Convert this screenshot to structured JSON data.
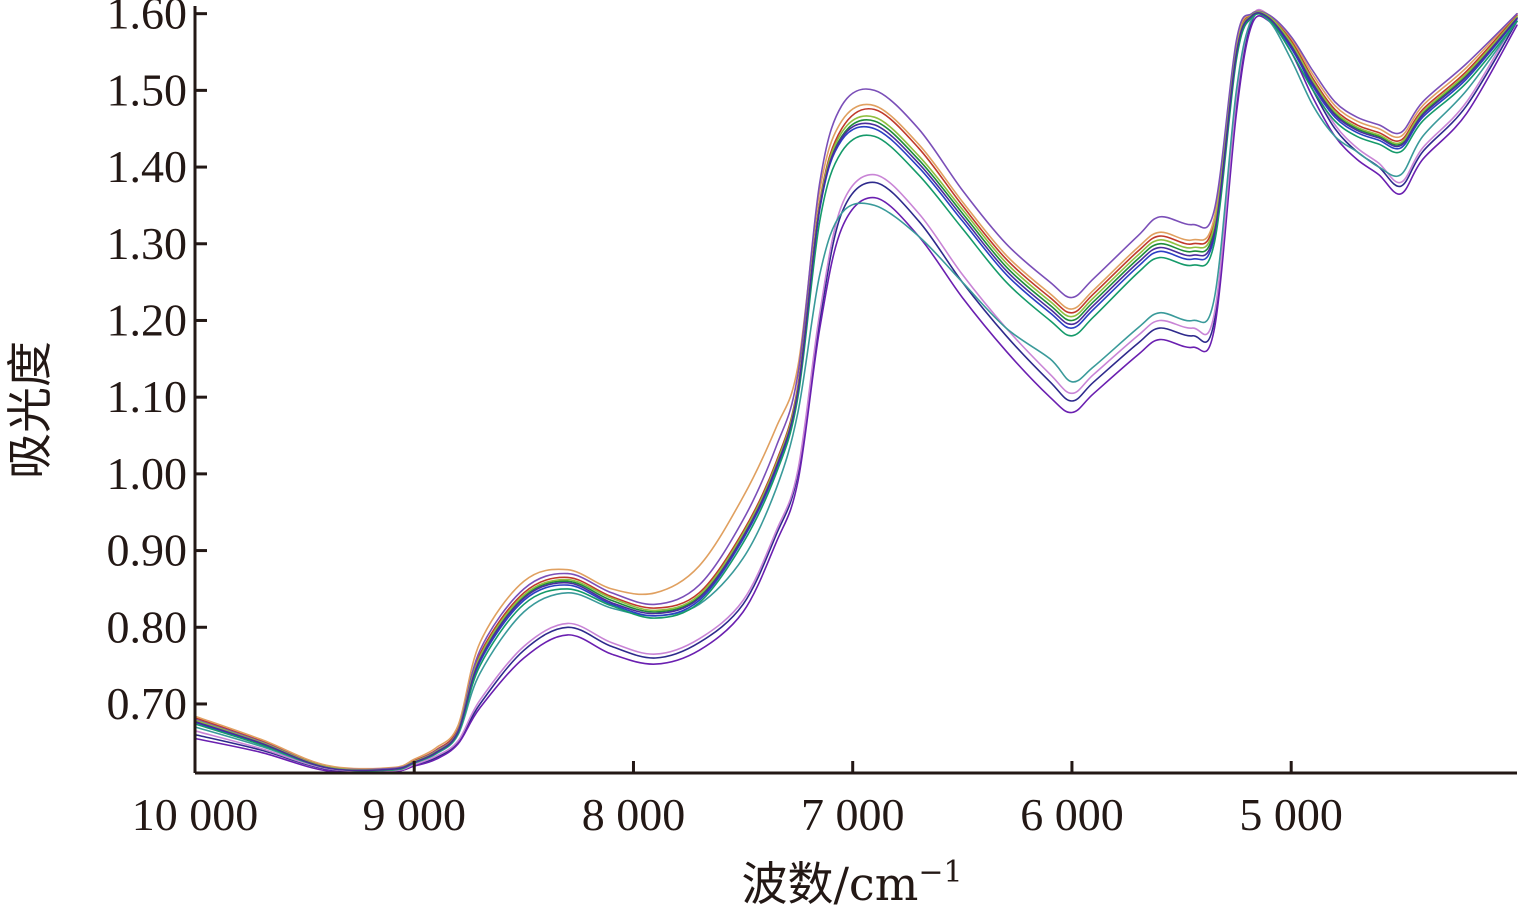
{
  "chart_data": {
    "type": "line",
    "title": "",
    "xlabel": "波数/cm",
    "xlabel_superscript": "−1",
    "ylabel": "吸光度",
    "x_reversed": true,
    "xlim": [
      10000,
      3970
    ],
    "ylim": [
      0.61,
      1.61
    ],
    "x_ticks": [
      10000,
      9000,
      8000,
      7000,
      6000,
      5000
    ],
    "x_tick_labels": [
      "10 000",
      "9 000",
      "8 000",
      "7 000",
      "6 000",
      "5 000"
    ],
    "y_ticks": [
      0.7,
      0.8,
      0.9,
      1.0,
      1.1,
      1.2,
      1.3,
      1.4,
      1.5,
      1.6
    ],
    "y_tick_labels": [
      "0.70",
      "0.80",
      "0.90",
      "1.00",
      "1.10",
      "1.20",
      "1.30",
      "1.40",
      "1.50",
      "1.60"
    ],
    "grid": false,
    "legend": "none",
    "x": [
      10000,
      9700,
      9400,
      9100,
      9000,
      8900,
      8800,
      8700,
      8500,
      8300,
      8100,
      7900,
      7700,
      7500,
      7350,
      7250,
      7150,
      7050,
      6900,
      6700,
      6500,
      6300,
      6100,
      6000,
      5900,
      5700,
      5600,
      5450,
      5350,
      5250,
      5180,
      5100,
      5000,
      4900,
      4800,
      4700,
      4600,
      4500,
      4400,
      4200,
      3970
    ],
    "series": [
      {
        "color": "#2e2a8c",
        "values": [
          0.66,
          0.64,
          0.615,
          0.612,
          0.62,
          0.63,
          0.65,
          0.7,
          0.77,
          0.8,
          0.775,
          0.76,
          0.78,
          0.83,
          0.92,
          1.0,
          1.2,
          1.34,
          1.38,
          1.33,
          1.25,
          1.18,
          1.12,
          1.095,
          1.12,
          1.17,
          1.19,
          1.18,
          1.2,
          1.48,
          1.59,
          1.595,
          1.56,
          1.5,
          1.45,
          1.42,
          1.4,
          1.375,
          1.42,
          1.48,
          1.59
        ]
      },
      {
        "color": "#6a1fb0",
        "values": [
          0.655,
          0.637,
          0.613,
          0.612,
          0.619,
          0.628,
          0.648,
          0.695,
          0.76,
          0.79,
          0.765,
          0.752,
          0.77,
          0.82,
          0.91,
          0.99,
          1.19,
          1.32,
          1.36,
          1.31,
          1.23,
          1.16,
          1.1,
          1.08,
          1.105,
          1.155,
          1.175,
          1.165,
          1.19,
          1.47,
          1.585,
          1.59,
          1.55,
          1.49,
          1.44,
          1.41,
          1.39,
          1.365,
          1.41,
          1.47,
          1.585
        ]
      },
      {
        "color": "#c984d6",
        "values": [
          0.665,
          0.642,
          0.616,
          0.613,
          0.621,
          0.632,
          0.652,
          0.705,
          0.775,
          0.805,
          0.78,
          0.765,
          0.785,
          0.835,
          0.925,
          1.005,
          1.21,
          1.35,
          1.39,
          1.34,
          1.26,
          1.19,
          1.13,
          1.105,
          1.13,
          1.18,
          1.2,
          1.19,
          1.21,
          1.49,
          1.595,
          1.598,
          1.565,
          1.505,
          1.455,
          1.425,
          1.405,
          1.38,
          1.425,
          1.485,
          1.595
        ]
      },
      {
        "color": "#3a9a9a",
        "values": [
          0.67,
          0.645,
          0.617,
          0.614,
          0.623,
          0.635,
          0.66,
          0.74,
          0.82,
          0.845,
          0.825,
          0.815,
          0.83,
          0.89,
          0.98,
          1.08,
          1.26,
          1.34,
          1.35,
          1.31,
          1.25,
          1.19,
          1.15,
          1.12,
          1.14,
          1.19,
          1.21,
          1.2,
          1.23,
          1.5,
          1.592,
          1.59,
          1.54,
          1.48,
          1.44,
          1.42,
          1.4,
          1.39,
          1.44,
          1.5,
          1.59
        ]
      },
      {
        "color": "#1e8c3a",
        "values": [
          0.678,
          0.65,
          0.618,
          0.615,
          0.625,
          0.638,
          0.665,
          0.76,
          0.84,
          0.86,
          0.835,
          0.82,
          0.84,
          0.92,
          1.01,
          1.11,
          1.35,
          1.44,
          1.46,
          1.41,
          1.34,
          1.27,
          1.22,
          1.2,
          1.225,
          1.28,
          1.3,
          1.29,
          1.32,
          1.55,
          1.598,
          1.595,
          1.56,
          1.51,
          1.47,
          1.45,
          1.44,
          1.43,
          1.47,
          1.52,
          1.595
        ]
      },
      {
        "color": "#2b3fc4",
        "values": [
          0.676,
          0.648,
          0.617,
          0.615,
          0.624,
          0.637,
          0.663,
          0.755,
          0.835,
          0.855,
          0.83,
          0.815,
          0.835,
          0.915,
          1.005,
          1.105,
          1.345,
          1.435,
          1.45,
          1.4,
          1.33,
          1.26,
          1.21,
          1.19,
          1.215,
          1.27,
          1.29,
          1.28,
          1.31,
          1.545,
          1.596,
          1.593,
          1.555,
          1.505,
          1.465,
          1.445,
          1.435,
          1.425,
          1.465,
          1.515,
          1.593
        ]
      },
      {
        "color": "#c0392b",
        "values": [
          0.682,
          0.652,
          0.619,
          0.616,
          0.626,
          0.64,
          0.668,
          0.765,
          0.845,
          0.865,
          0.84,
          0.825,
          0.845,
          0.925,
          1.015,
          1.115,
          1.355,
          1.45,
          1.475,
          1.425,
          1.35,
          1.28,
          1.23,
          1.21,
          1.235,
          1.29,
          1.31,
          1.3,
          1.33,
          1.555,
          1.599,
          1.597,
          1.565,
          1.515,
          1.475,
          1.455,
          1.445,
          1.435,
          1.475,
          1.525,
          1.598
        ]
      },
      {
        "color": "#e0a060",
        "values": [
          0.684,
          0.654,
          0.62,
          0.617,
          0.628,
          0.643,
          0.672,
          0.78,
          0.86,
          0.875,
          0.85,
          0.845,
          0.88,
          0.97,
          1.06,
          1.14,
          1.37,
          1.46,
          1.48,
          1.43,
          1.355,
          1.285,
          1.235,
          1.215,
          1.24,
          1.295,
          1.315,
          1.305,
          1.335,
          1.56,
          1.6,
          1.598,
          1.568,
          1.52,
          1.48,
          1.46,
          1.45,
          1.44,
          1.48,
          1.53,
          1.6
        ]
      },
      {
        "color": "#7b4fb8",
        "values": [
          0.68,
          0.651,
          0.618,
          0.616,
          0.625,
          0.639,
          0.666,
          0.77,
          0.85,
          0.87,
          0.845,
          0.83,
          0.855,
          0.94,
          1.035,
          1.13,
          1.38,
          1.48,
          1.5,
          1.45,
          1.37,
          1.3,
          1.25,
          1.23,
          1.255,
          1.31,
          1.335,
          1.325,
          1.345,
          1.565,
          1.6,
          1.598,
          1.57,
          1.525,
          1.485,
          1.465,
          1.455,
          1.445,
          1.485,
          1.535,
          1.6
        ]
      },
      {
        "color": "#159a6a",
        "values": [
          0.674,
          0.647,
          0.617,
          0.614,
          0.623,
          0.636,
          0.662,
          0.75,
          0.83,
          0.85,
          0.828,
          0.812,
          0.832,
          0.91,
          1.0,
          1.1,
          1.33,
          1.42,
          1.44,
          1.39,
          1.32,
          1.25,
          1.2,
          1.18,
          1.205,
          1.262,
          1.282,
          1.272,
          1.302,
          1.54,
          1.595,
          1.592,
          1.55,
          1.5,
          1.46,
          1.44,
          1.43,
          1.42,
          1.46,
          1.51,
          1.59
        ]
      },
      {
        "color": "#8fbf3f",
        "values": [
          0.679,
          0.65,
          0.618,
          0.615,
          0.625,
          0.638,
          0.665,
          0.762,
          0.842,
          0.862,
          0.838,
          0.822,
          0.842,
          0.922,
          1.012,
          1.112,
          1.352,
          1.445,
          1.465,
          1.415,
          1.345,
          1.275,
          1.225,
          1.205,
          1.23,
          1.285,
          1.305,
          1.295,
          1.325,
          1.552,
          1.598,
          1.596,
          1.562,
          1.512,
          1.472,
          1.452,
          1.442,
          1.432,
          1.472,
          1.522,
          1.596
        ]
      },
      {
        "color": "#4a2c9c",
        "values": [
          0.677,
          0.649,
          0.617,
          0.615,
          0.624,
          0.637,
          0.664,
          0.758,
          0.838,
          0.858,
          0.832,
          0.818,
          0.838,
          0.918,
          1.008,
          1.108,
          1.348,
          1.438,
          1.455,
          1.405,
          1.335,
          1.265,
          1.215,
          1.195,
          1.22,
          1.275,
          1.295,
          1.285,
          1.315,
          1.548,
          1.597,
          1.594,
          1.558,
          1.508,
          1.468,
          1.448,
          1.438,
          1.428,
          1.468,
          1.518,
          1.594
        ]
      }
    ]
  }
}
